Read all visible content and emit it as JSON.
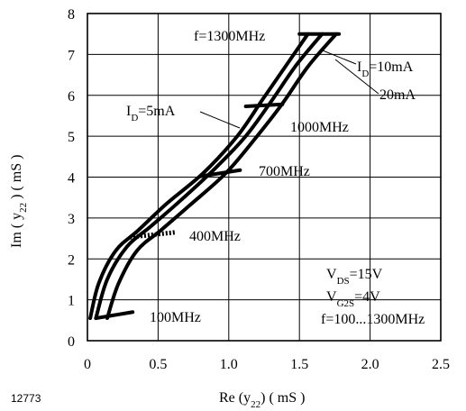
{
  "figure_id": "12773",
  "chart_data": {
    "type": "line",
    "xlabel": "Re (y22) (mS)",
    "ylabel": "Im (y22) (mS)",
    "xlim": [
      0,
      2.5
    ],
    "ylim": [
      0,
      8
    ],
    "x_ticks": [
      0,
      0.5,
      1.0,
      1.5,
      2.0,
      2.5
    ],
    "x_tick_labels": [
      "0",
      "0.5",
      "1.0",
      "1.5",
      "2.0",
      "2.5"
    ],
    "y_ticks": [
      0,
      1,
      2,
      3,
      4,
      5,
      6,
      7,
      8
    ],
    "y_tick_labels": [
      "0",
      "1",
      "2",
      "3",
      "4",
      "5",
      "6",
      "7",
      "8"
    ],
    "grid": true,
    "series": [
      {
        "name": "ID=5mA",
        "points": [
          [
            0.02,
            0.55
          ],
          [
            0.08,
            1.4
          ],
          [
            0.2,
            2.2
          ],
          [
            0.36,
            2.7
          ],
          [
            0.56,
            3.35
          ],
          [
            0.82,
            4.1
          ],
          [
            1.06,
            5.0
          ],
          [
            1.24,
            5.9
          ],
          [
            1.42,
            6.8
          ],
          [
            1.56,
            7.5
          ]
        ]
      },
      {
        "name": "ID=10mA",
        "points": [
          [
            0.06,
            0.55
          ],
          [
            0.14,
            1.5
          ],
          [
            0.28,
            2.3
          ],
          [
            0.45,
            2.8
          ],
          [
            0.65,
            3.4
          ],
          [
            0.9,
            4.2
          ],
          [
            1.12,
            5.0
          ],
          [
            1.3,
            5.85
          ],
          [
            1.48,
            6.75
          ],
          [
            1.66,
            7.5
          ]
        ]
      },
      {
        "name": "20mA",
        "points": [
          [
            0.14,
            0.55
          ],
          [
            0.22,
            1.4
          ],
          [
            0.35,
            2.2
          ],
          [
            0.52,
            2.7
          ],
          [
            0.72,
            3.3
          ],
          [
            0.98,
            4.1
          ],
          [
            1.2,
            5.0
          ],
          [
            1.38,
            5.8
          ],
          [
            1.56,
            6.7
          ],
          [
            1.76,
            7.5
          ]
        ]
      }
    ],
    "frequency_markers": [
      {
        "label": "100MHz",
        "x1": 0.06,
        "y1": 0.55,
        "x2": 0.32,
        "y2": 0.7,
        "style": "solid"
      },
      {
        "label": "400MHz",
        "x1": 0.3,
        "y1": 2.53,
        "x2": 0.62,
        "y2": 2.65,
        "style": "dotted"
      },
      {
        "label": "700MHz",
        "x1": 0.8,
        "y1": 4.02,
        "x2": 1.08,
        "y2": 4.17,
        "style": "solid"
      },
      {
        "label": "1000MHz",
        "x1": 1.12,
        "y1": 5.73,
        "x2": 1.38,
        "y2": 5.78,
        "style": "solid"
      },
      {
        "label": "f=1300MHz",
        "x1": 1.5,
        "y1": 7.5,
        "x2": 1.78,
        "y2": 7.5,
        "style": "solid"
      }
    ],
    "annotations": {
      "id5": {
        "label": "I",
        "sub": "D",
        "rest": "=5mA"
      },
      "id10": {
        "label": "I",
        "sub": "D",
        "rest": "=10mA"
      },
      "id20": {
        "label": "20mA"
      },
      "conditions": [
        {
          "main": "V",
          "sub": "DS",
          "rest": "=15V"
        },
        {
          "main": "V",
          "sub": "G2S",
          "rest": "=4V"
        },
        {
          "main": "f=100...1300MHz",
          "sub": "",
          "rest": ""
        }
      ]
    },
    "axis_titles": {
      "x": {
        "pre": "Re (y",
        "sub": "22",
        "post": ")  ( mS )"
      },
      "y": {
        "pre": "Im ( y",
        "sub": "22",
        "post": " )  ( mS )"
      }
    }
  }
}
